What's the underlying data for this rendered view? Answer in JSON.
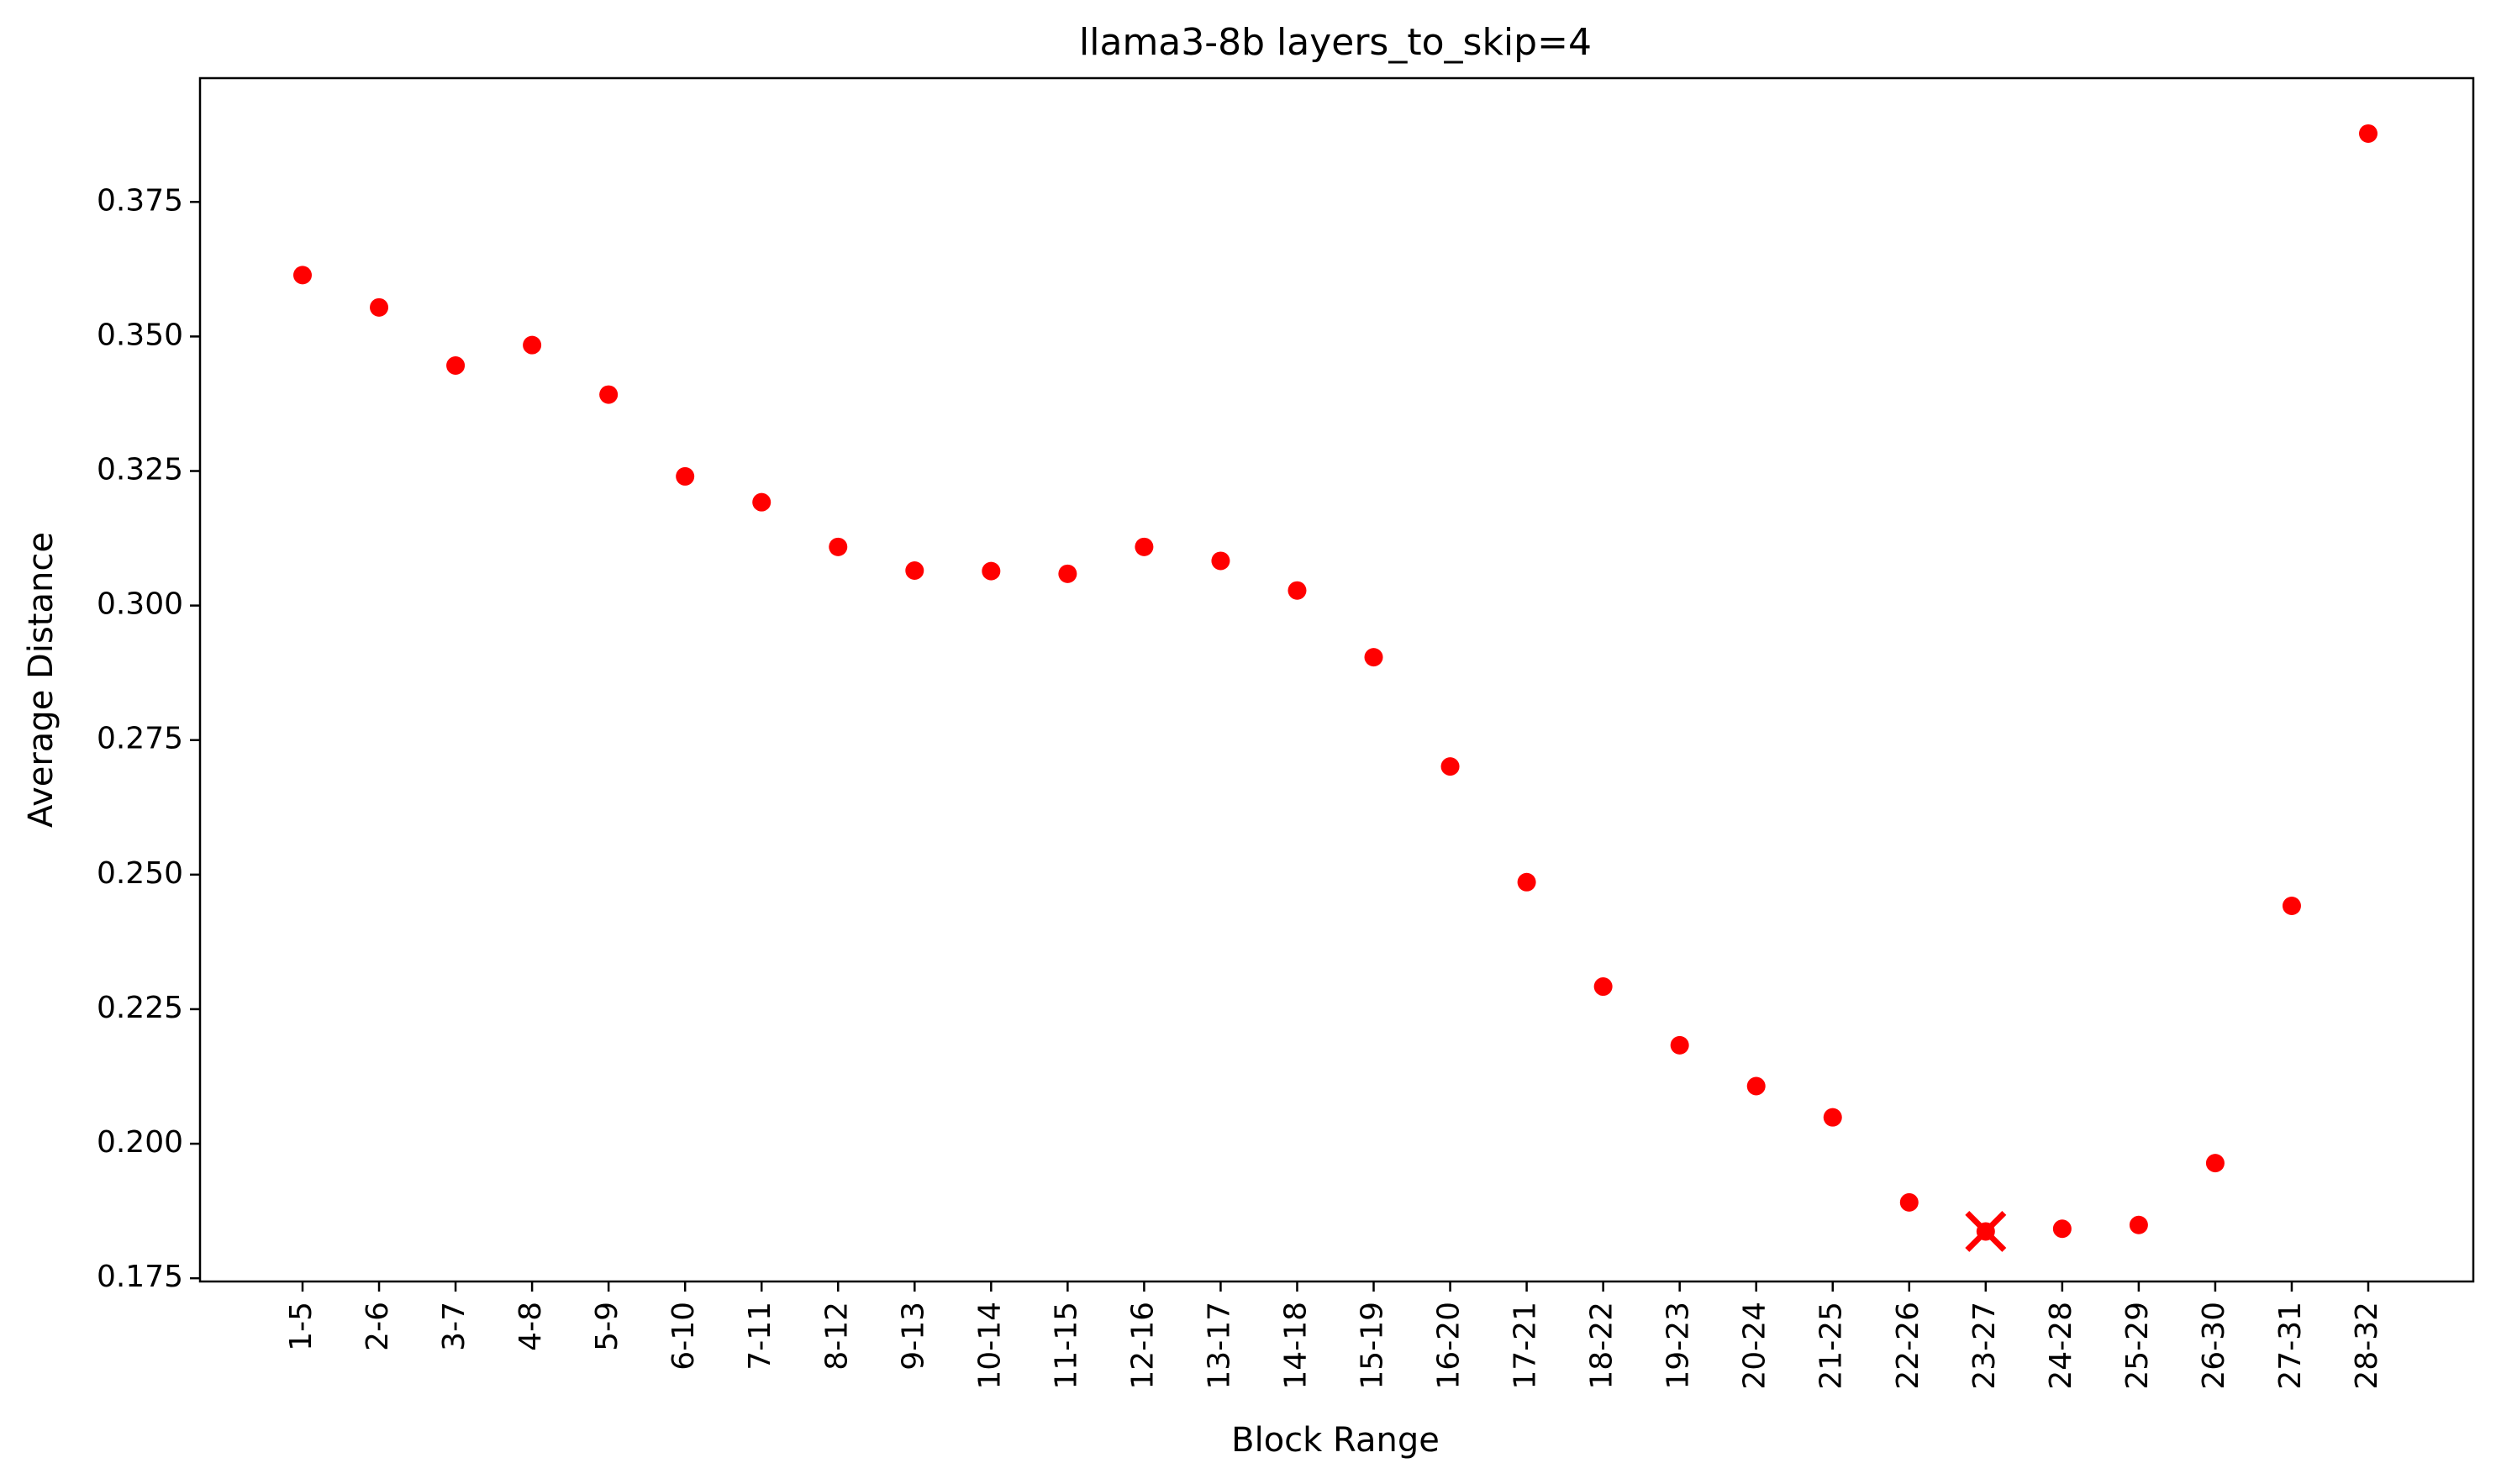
{
  "chart_data": {
    "type": "scatter",
    "title": "llama3-8b layers_to_skip=4",
    "xlabel": "Block Range",
    "ylabel": "Average Distance",
    "categories": [
      "1-5",
      "2-6",
      "3-7",
      "4-8",
      "5-9",
      "6-10",
      "7-11",
      "8-12",
      "9-13",
      "10-14",
      "11-15",
      "12-16",
      "13-17",
      "14-18",
      "15-19",
      "16-20",
      "17-21",
      "18-22",
      "19-23",
      "20-24",
      "21-25",
      "22-26",
      "23-27",
      "24-28",
      "25-29",
      "26-30",
      "27-31",
      "28-32"
    ],
    "values": [
      0.3614,
      0.3554,
      0.3446,
      0.3484,
      0.3392,
      0.324,
      0.3192,
      0.3109,
      0.3065,
      0.3064,
      0.3059,
      0.3109,
      0.3083,
      0.3028,
      0.2904,
      0.2701,
      0.2486,
      0.2292,
      0.2183,
      0.2107,
      0.2049,
      0.1891,
      0.1837,
      0.1842,
      0.1849,
      0.1964,
      0.2442,
      0.3877
    ],
    "highlight": {
      "category": "23-27",
      "value": 0.1837,
      "marker": "x"
    },
    "yticks": [
      0.175,
      0.2,
      0.225,
      0.25,
      0.275,
      0.3,
      0.325,
      0.35,
      0.375
    ],
    "ytick_labels": [
      "0.175",
      "0.200",
      "0.225",
      "0.250",
      "0.275",
      "0.300",
      "0.325",
      "0.350",
      "0.375"
    ],
    "ylim": [
      0.1744,
      0.398
    ],
    "grid": false,
    "color": "#ff0000"
  }
}
